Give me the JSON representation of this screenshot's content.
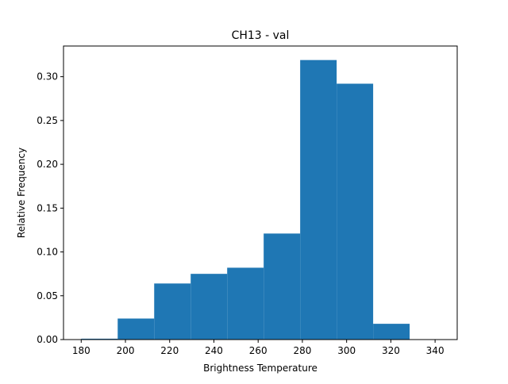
{
  "chart_data": {
    "type": "bar",
    "title": "CH13 - val",
    "xlabel": "Brightness Temperature",
    "ylabel": "Relative Frequency",
    "xlim": [
      172,
      350
    ],
    "ylim": [
      0,
      0.335
    ],
    "x_ticks": [
      180,
      200,
      220,
      240,
      260,
      280,
      300,
      320,
      340
    ],
    "y_ticks": [
      0.0,
      0.05,
      0.1,
      0.15,
      0.2,
      0.25,
      0.3
    ],
    "bins": [
      {
        "x0": 180,
        "x1": 196.5,
        "value": 0.001
      },
      {
        "x0": 196.5,
        "x1": 213,
        "value": 0.024
      },
      {
        "x0": 213,
        "x1": 229.5,
        "value": 0.064
      },
      {
        "x0": 229.5,
        "x1": 246,
        "value": 0.075
      },
      {
        "x0": 246,
        "x1": 262.5,
        "value": 0.082
      },
      {
        "x0": 262.5,
        "x1": 279,
        "value": 0.121
      },
      {
        "x0": 279,
        "x1": 295.5,
        "value": 0.319
      },
      {
        "x0": 295.5,
        "x1": 312,
        "value": 0.292
      },
      {
        "x0": 312,
        "x1": 328.5,
        "value": 0.018
      }
    ],
    "bar_color": "#1f77b4",
    "grid": false,
    "legend": "none"
  }
}
